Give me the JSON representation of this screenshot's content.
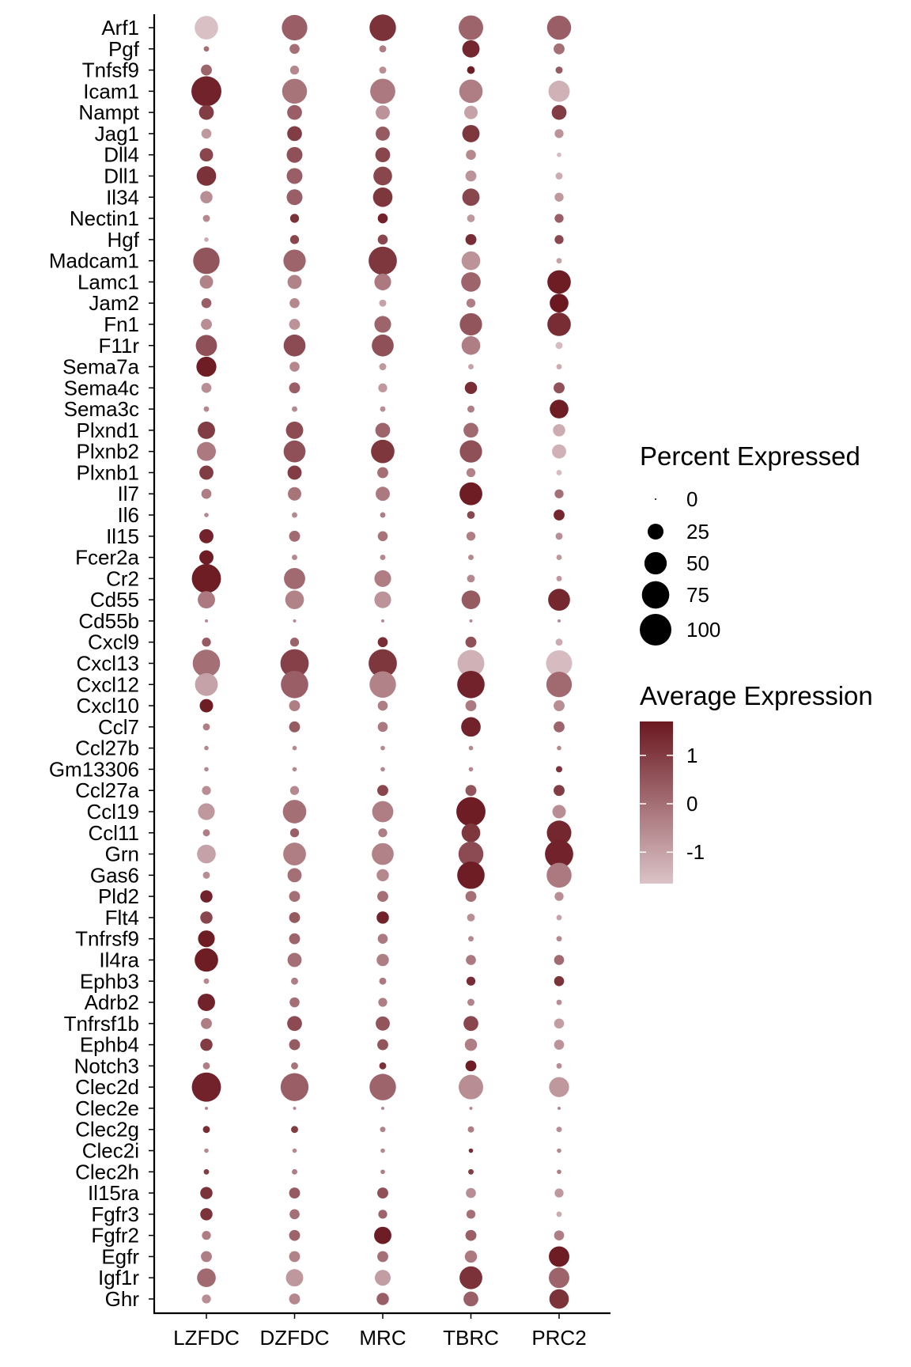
{
  "chart_data": {
    "type": "dotplot",
    "x_categories": [
      "LZFDC",
      "DZFDC",
      "MRC",
      "TBRC",
      "PRC2"
    ],
    "genes": [
      "Arf1",
      "Pgf",
      "Tnfsf9",
      "Icam1",
      "Nampt",
      "Jag1",
      "Dll4",
      "Dll1",
      "Il34",
      "Nectin1",
      "Hgf",
      "Madcam1",
      "Lamc1",
      "Jam2",
      "Fn1",
      "F11r",
      "Sema7a",
      "Sema4c",
      "Sema3c",
      "Plxnd1",
      "Plxnb2",
      "Plxnb1",
      "Il7",
      "Il6",
      "Il15",
      "Fcer2a",
      "Cr2",
      "Cd55",
      "Cd55b",
      "Cxcl9",
      "Cxcl13",
      "Cxcl12",
      "Cxcl10",
      "Ccl7",
      "Ccl27b",
      "Gm13306",
      "Ccl27a",
      "Ccl19",
      "Ccl11",
      "Grn",
      "Gas6",
      "Pld2",
      "Flt4",
      "Tnfrsf9",
      "Il4ra",
      "Ephb3",
      "Adrb2",
      "Tnfrsf1b",
      "Ephb4",
      "Notch3",
      "Clec2d",
      "Clec2e",
      "Clec2g",
      "Clec2i",
      "Clec2h",
      "Il15ra",
      "Fgfr3",
      "Fgfr2",
      "Egfr",
      "Igf1r",
      "Ghr"
    ],
    "percent_expressed": [
      [
        55,
        65,
        70,
        60,
        58
      ],
      [
        3,
        10,
        5,
        30,
        12
      ],
      [
        12,
        8,
        5,
        6,
        5
      ],
      [
        90,
        62,
        63,
        55,
        45
      ],
      [
        22,
        22,
        20,
        18,
        22
      ],
      [
        10,
        22,
        20,
        30,
        8
      ],
      [
        18,
        25,
        22,
        10,
        2
      ],
      [
        38,
        25,
        35,
        12,
        5
      ],
      [
        15,
        25,
        38,
        30,
        8
      ],
      [
        5,
        8,
        10,
        6,
        8
      ],
      [
        2,
        8,
        10,
        12,
        8
      ],
      [
        70,
        50,
        80,
        35,
        3
      ],
      [
        18,
        20,
        28,
        38,
        55
      ],
      [
        10,
        10,
        5,
        8,
        35
      ],
      [
        12,
        12,
        28,
        50,
        55
      ],
      [
        45,
        48,
        48,
        35,
        5
      ],
      [
        40,
        10,
        5,
        3,
        3
      ],
      [
        10,
        12,
        8,
        15,
        12
      ],
      [
        3,
        3,
        3,
        5,
        35
      ],
      [
        30,
        30,
        22,
        22,
        15
      ],
      [
        36,
        48,
        55,
        50,
        20
      ],
      [
        20,
        20,
        12,
        8,
        3
      ],
      [
        10,
        18,
        20,
        52,
        8
      ],
      [
        2,
        3,
        3,
        6,
        12
      ],
      [
        20,
        12,
        10,
        8,
        5
      ],
      [
        20,
        3,
        3,
        3,
        3
      ],
      [
        85,
        45,
        28,
        6,
        3
      ],
      [
        30,
        35,
        28,
        35,
        48
      ],
      [
        1,
        1,
        1,
        1,
        1
      ],
      [
        8,
        8,
        10,
        12,
        5
      ],
      [
        75,
        80,
        80,
        72,
        68
      ],
      [
        52,
        75,
        70,
        75,
        65
      ],
      [
        18,
        12,
        10,
        12,
        12
      ],
      [
        5,
        12,
        10,
        38,
        12
      ],
      [
        2,
        2,
        2,
        2,
        2
      ],
      [
        2,
        2,
        2,
        2,
        4
      ],
      [
        8,
        8,
        12,
        12,
        12
      ],
      [
        28,
        55,
        45,
        85,
        18
      ],
      [
        5,
        8,
        8,
        35,
        60
      ],
      [
        35,
        52,
        48,
        62,
        80
      ],
      [
        5,
        20,
        15,
        75,
        62
      ],
      [
        15,
        12,
        12,
        12,
        8
      ],
      [
        15,
        12,
        15,
        6,
        3
      ],
      [
        28,
        12,
        10,
        3,
        3
      ],
      [
        55,
        20,
        15,
        10,
        10
      ],
      [
        3,
        5,
        5,
        8,
        10
      ],
      [
        30,
        10,
        8,
        5,
        3
      ],
      [
        12,
        22,
        20,
        22,
        10
      ],
      [
        15,
        12,
        12,
        15,
        10
      ],
      [
        5,
        5,
        5,
        12,
        3
      ],
      [
        85,
        78,
        70,
        60,
        40
      ],
      [
        1,
        1,
        1,
        1,
        1
      ],
      [
        5,
        5,
        3,
        4,
        3
      ],
      [
        2,
        2,
        2,
        2,
        2
      ],
      [
        3,
        3,
        2,
        3,
        2
      ],
      [
        15,
        12,
        12,
        10,
        8
      ],
      [
        15,
        10,
        8,
        8,
        3
      ],
      [
        8,
        12,
        30,
        12,
        10
      ],
      [
        12,
        12,
        12,
        15,
        42
      ],
      [
        35,
        30,
        25,
        52,
        42
      ],
      [
        8,
        12,
        15,
        22,
        38
      ]
    ],
    "average_expression": [
      [
        -1.6,
        0.3,
        1.2,
        0.2,
        0.3
      ],
      [
        0,
        0,
        -0.3,
        1.4,
        0
      ],
      [
        0.2,
        -0.5,
        -0.6,
        1.6,
        0.4
      ],
      [
        1.5,
        -0.1,
        -0.2,
        -0.3,
        -1.3
      ],
      [
        1.0,
        0.3,
        -0.7,
        -1.0,
        1.0
      ],
      [
        -0.8,
        1.0,
        0.4,
        1.1,
        -0.7
      ],
      [
        0.8,
        0.6,
        0.8,
        -0.5,
        -1.5
      ],
      [
        1.2,
        0.3,
        0.8,
        -0.7,
        -1.2
      ],
      [
        -0.6,
        0.3,
        1.1,
        0.8,
        -0.8
      ],
      [
        -0.5,
        1.2,
        1.5,
        -0.8,
        0.3
      ],
      [
        -1.2,
        0.8,
        0.8,
        1.3,
        0.8
      ],
      [
        0.5,
        0.2,
        1.1,
        -0.7,
        -1.0
      ],
      [
        -0.4,
        -0.4,
        -0.2,
        0.2,
        1.6
      ],
      [
        0.3,
        -0.5,
        -1.0,
        -0.3,
        1.7
      ],
      [
        -0.6,
        -0.7,
        0.2,
        0.5,
        1.3
      ],
      [
        0.6,
        0.7,
        0.6,
        -0.3,
        -1.5
      ],
      [
        1.6,
        -0.5,
        -0.8,
        -1.0,
        -1.2
      ],
      [
        -0.6,
        0.3,
        -0.8,
        1.3,
        0.6
      ],
      [
        -0.5,
        -0.5,
        -0.6,
        -0.3,
        1.6
      ],
      [
        1.0,
        0.7,
        0.2,
        0.1,
        -1.2
      ],
      [
        -0.2,
        0.6,
        1.1,
        0.6,
        -1.3
      ],
      [
        1.0,
        1.0,
        0.0,
        -0.4,
        -1.5
      ],
      [
        -0.3,
        -0.1,
        -0.2,
        1.6,
        0
      ],
      [
        -0.5,
        -0.5,
        -0.3,
        0.8,
        1.4
      ],
      [
        1.5,
        0.1,
        -0.1,
        -0.3,
        -0.6
      ],
      [
        1.6,
        -0.5,
        -0.5,
        -0.5,
        -0.8
      ],
      [
        1.6,
        0.1,
        -0.3,
        -0.5,
        -0.8
      ],
      [
        -0.2,
        -0.4,
        -0.7,
        0.4,
        1.4
      ],
      [
        -0.5,
        -0.5,
        -0.5,
        -0.5,
        -0.5
      ],
      [
        0.4,
        0.2,
        1.3,
        0.6,
        -1.2
      ],
      [
        0.0,
        0.9,
        1.1,
        -1.3,
        -1.5
      ],
      [
        -1.0,
        0.3,
        -0.4,
        1.5,
        0.1
      ],
      [
        1.6,
        -0.3,
        -0.3,
        -0.2,
        -0.6
      ],
      [
        -0.3,
        0.4,
        -0.2,
        1.5,
        0.2
      ],
      [
        -0.5,
        -0.5,
        -0.5,
        -0.5,
        -0.5
      ],
      [
        -0.5,
        -0.5,
        -0.5,
        -0.5,
        1.2
      ],
      [
        -0.6,
        -0.5,
        0.8,
        0.5,
        1.0
      ],
      [
        -0.8,
        0.0,
        -0.3,
        1.6,
        -0.6
      ],
      [
        -0.3,
        0.3,
        -0.3,
        1.1,
        1.4
      ],
      [
        -1.0,
        -0.3,
        -0.4,
        0.7,
        1.5
      ],
      [
        -0.6,
        0.0,
        -0.5,
        1.6,
        -0.2
      ],
      [
        1.5,
        0.0,
        0.0,
        0.0,
        -0.6
      ],
      [
        0.8,
        0.4,
        1.5,
        -0.6,
        -1.0
      ],
      [
        1.6,
        0.2,
        -0.2,
        -0.5,
        -0.5
      ],
      [
        1.6,
        0.0,
        -0.3,
        -0.2,
        0.1
      ],
      [
        -0.5,
        -0.3,
        -0.2,
        1.3,
        1.2
      ],
      [
        1.5,
        0.0,
        -0.3,
        -0.4,
        -0.6
      ],
      [
        -0.3,
        0.7,
        0.5,
        0.8,
        -0.9
      ],
      [
        1.0,
        0.4,
        0.5,
        -0.3,
        -0.7
      ],
      [
        -0.3,
        -0.1,
        1.2,
        1.6,
        -0.6
      ],
      [
        1.5,
        0.3,
        0.2,
        -0.6,
        -0.8
      ],
      [
        -0.5,
        -0.5,
        -0.5,
        -0.5,
        -0.5
      ],
      [
        1.3,
        1.0,
        -0.4,
        -0.3,
        -0.6
      ],
      [
        -0.5,
        -0.5,
        -0.5,
        1.3,
        -0.5
      ],
      [
        1.0,
        -0.3,
        -0.3,
        1.0,
        -0.3
      ],
      [
        1.2,
        0.4,
        0.6,
        -0.6,
        -0.8
      ],
      [
        1.2,
        0.0,
        0.2,
        0.0,
        -1.2
      ],
      [
        -0.3,
        0.2,
        1.6,
        0.3,
        -0.3
      ],
      [
        -0.3,
        -0.4,
        0.0,
        -0.2,
        1.6
      ],
      [
        0.1,
        -0.8,
        -0.9,
        1.2,
        0.2
      ],
      [
        -0.6,
        -0.5,
        0.3,
        0.3,
        1.2
      ]
    ],
    "size_legend": {
      "title": "Percent Expressed",
      "values": [
        0,
        25,
        50,
        75,
        100
      ],
      "labels": [
        "0",
        "25",
        "50",
        "75",
        "100"
      ]
    },
    "color_legend": {
      "title": "Average Expression",
      "range": [
        -1.65,
        1.7
      ],
      "tick_values": [
        1,
        0,
        -1
      ],
      "tick_labels": [
        "1",
        "0",
        "-1"
      ],
      "low_color": "#dbc3c7",
      "high_color": "#6b1820"
    },
    "xlabel": "",
    "ylabel": ""
  }
}
